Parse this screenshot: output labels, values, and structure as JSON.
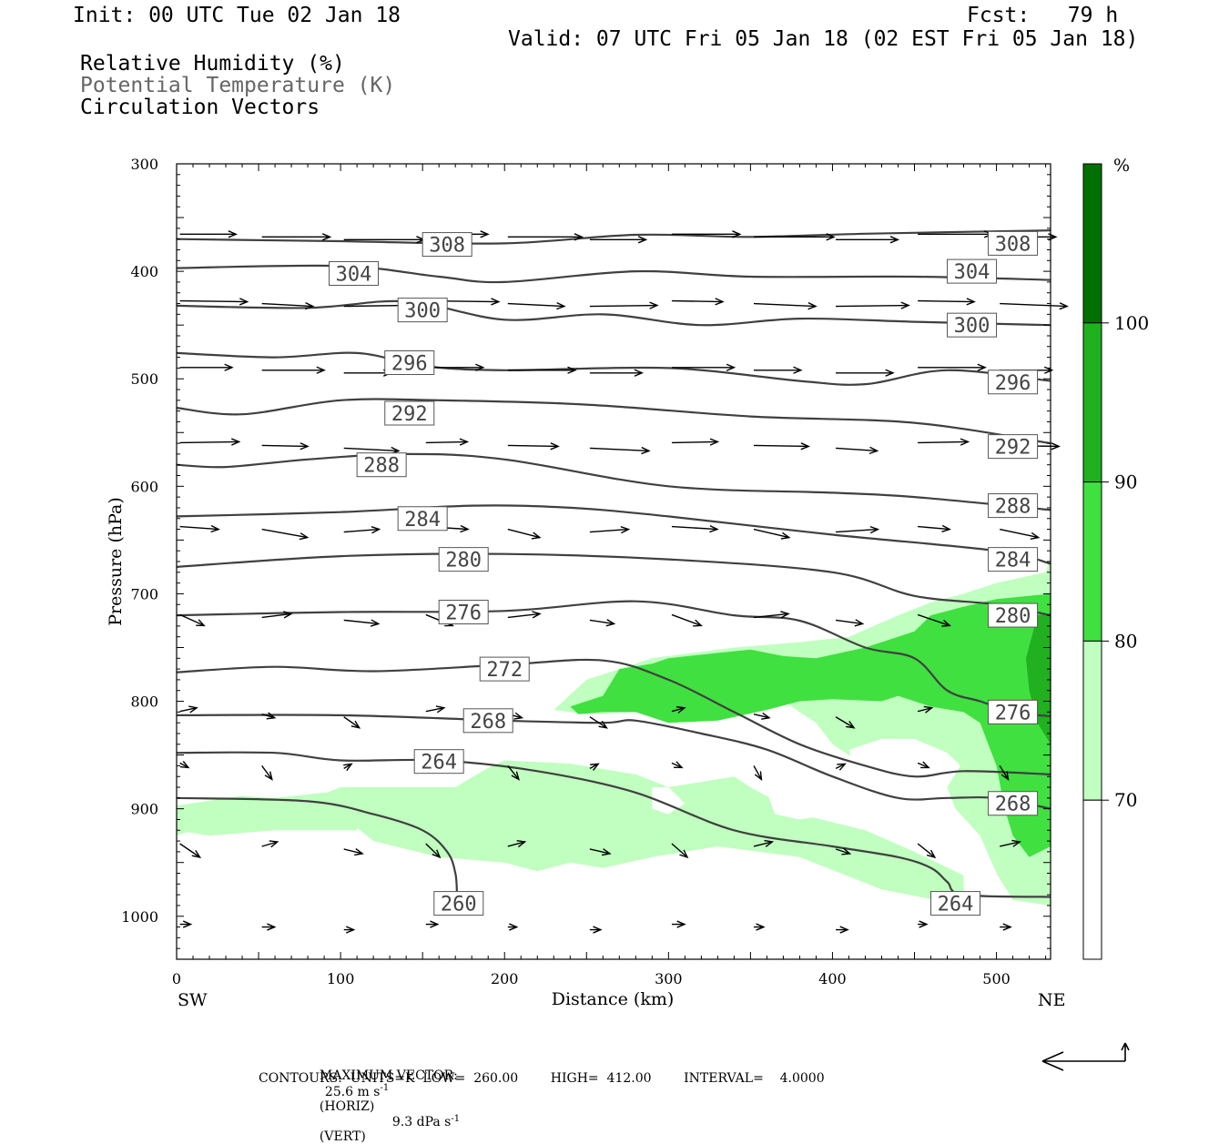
{
  "header": {
    "init": "Init: 00 UTC Tue 02 Jan 18",
    "fcst": "Fcst:   79 h",
    "valid": "Valid: 07 UTC Fri 05 Jan 18 (02 EST Fri 05 Jan 18)"
  },
  "fields": {
    "rh": "Relative Humidity (%)",
    "theta": "Potential Temperature (K)",
    "vectors": "Circulation Vectors"
  },
  "footer": {
    "max_label": "MAXIMUM VECTOR:",
    "max_horiz": "25.6 m s",
    "horiz_tag": "(HORIZ)",
    "max_vert": "9.3 dPa s",
    "vert_tag": "(VERT)",
    "exp": "-1",
    "contours": "CONTOURS:  UNITS=K  LOW=  260.00        HIGH=  412.00        INTERVAL=    4.0000"
  },
  "colors": {
    "rh_70": "#c0ffc0",
    "rh_80": "#40e040",
    "rh_90": "#20b020",
    "rh_100": "#007000",
    "contour": "#404040"
  },
  "chart_data": {
    "type": "cross-section",
    "xlabel": "Distance (km)",
    "ylabel": "Pressure (hPa)",
    "xlim": [
      0,
      533
    ],
    "ylim": [
      300,
      1040
    ],
    "y_scale": "linear, inverted",
    "xticks": [
      "0",
      "100",
      "200",
      "300",
      "400",
      "500"
    ],
    "yticks": [
      "300",
      "400",
      "500",
      "600",
      "700",
      "800",
      "900",
      "1000"
    ],
    "left_end": "SW",
    "right_end": "NE",
    "colorbar": {
      "unit": "%",
      "levels": [
        "70",
        "80",
        "90",
        "100"
      ]
    },
    "theta_contours": [
      {
        "label": "308",
        "x": [
          0,
          100,
          200,
          280,
          350,
          420,
          533
        ],
        "p": [
          370,
          372,
          374,
          366,
          368,
          365,
          362
        ]
      },
      {
        "label": "304",
        "x": [
          0,
          100,
          160,
          200,
          280,
          350,
          450,
          533
        ],
        "p": [
          397,
          395,
          405,
          410,
          400,
          405,
          405,
          408
        ]
      },
      {
        "label": "300",
        "x": [
          0,
          80,
          140,
          200,
          260,
          320,
          380,
          450,
          533
        ],
        "p": [
          432,
          434,
          428,
          445,
          440,
          450,
          444,
          447,
          450
        ]
      },
      {
        "label": "296",
        "x": [
          0,
          60,
          110,
          150,
          200,
          300,
          380,
          420,
          470,
          533
        ],
        "p": [
          476,
          480,
          476,
          488,
          492,
          490,
          502,
          505,
          492,
          502
        ]
      },
      {
        "label": "292",
        "x": [
          0,
          40,
          100,
          160,
          250,
          350,
          450,
          533
        ],
        "p": [
          527,
          533,
          520,
          520,
          524,
          535,
          541,
          560
        ]
      },
      {
        "label": "288",
        "x": [
          0,
          30,
          80,
          140,
          200,
          300,
          400,
          450,
          533
        ],
        "p": [
          580,
          582,
          575,
          570,
          575,
          600,
          606,
          610,
          622
        ]
      },
      {
        "label": "284",
        "x": [
          0,
          100,
          180,
          240,
          300,
          400,
          500,
          533
        ],
        "p": [
          628,
          624,
          618,
          620,
          628,
          645,
          660,
          672
        ]
      },
      {
        "label": "280",
        "x": [
          0,
          100,
          200,
          300,
          400,
          450,
          500,
          533
        ],
        "p": [
          675,
          665,
          663,
          668,
          680,
          702,
          710,
          720
        ]
      },
      {
        "label": "276",
        "x": [
          0,
          100,
          200,
          280,
          340,
          380,
          420,
          450,
          470,
          490,
          510,
          533
        ],
        "p": [
          720,
          717,
          716,
          707,
          720,
          725,
          750,
          760,
          790,
          800,
          810,
          814
        ]
      },
      {
        "label": "272",
        "x": [
          0,
          60,
          120,
          200,
          260,
          300,
          340,
          380,
          420,
          450,
          480,
          533
        ],
        "p": [
          773,
          768,
          772,
          766,
          762,
          780,
          810,
          840,
          860,
          870,
          865,
          868
        ]
      },
      {
        "label": "268",
        "x": [
          0,
          100,
          200,
          260,
          280,
          320,
          360,
          400,
          440,
          470,
          500,
          533
        ],
        "p": [
          813,
          813,
          818,
          820,
          818,
          830,
          845,
          870,
          890,
          890,
          890,
          900
        ]
      },
      {
        "label": "264",
        "x": [
          0,
          60,
          100,
          160,
          220,
          280,
          340,
          400,
          440,
          460,
          470,
          480,
          533
        ],
        "p": [
          848,
          848,
          855,
          855,
          865,
          885,
          920,
          935,
          945,
          955,
          968,
          980,
          982
        ]
      },
      {
        "label": "260",
        "x": [
          0,
          80,
          120,
          150,
          165,
          170,
          171
        ],
        "p": [
          890,
          893,
          905,
          920,
          940,
          960,
          980
        ]
      }
    ],
    "vectors_note": "circulation vectors on a grid (u, omega)"
  }
}
